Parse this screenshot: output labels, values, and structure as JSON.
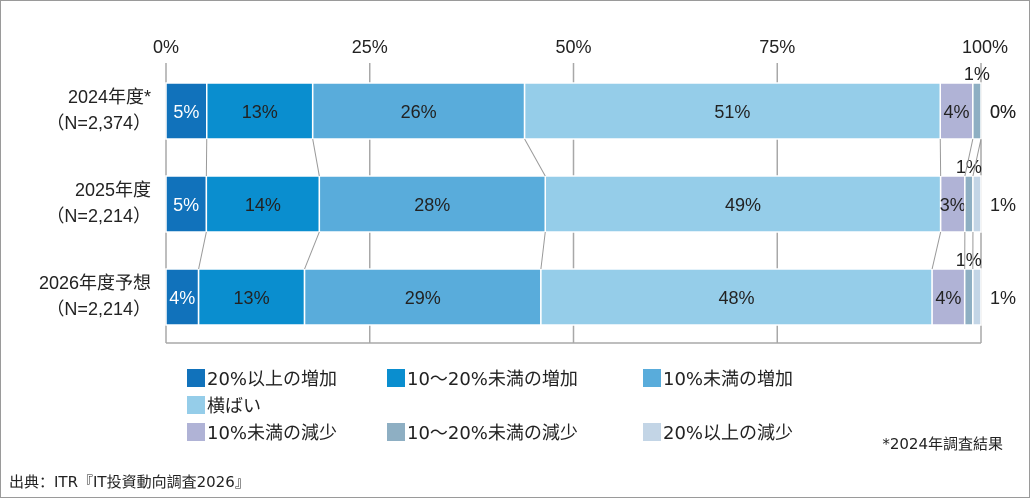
{
  "chart_data": {
    "type": "bar",
    "orientation": "horizontal",
    "stacked": true,
    "categories": [
      "2024年度*\n（N=2,374）",
      "2025年度\n（N=2,214）",
      "2026年度予想\n（N=2,214）"
    ],
    "category_lines": [
      [
        "2024年度*",
        "（N=2,374）"
      ],
      [
        "2025年度",
        "（N=2,214）"
      ],
      [
        "2026年度予想",
        "（N=2,214）"
      ]
    ],
    "xlim": [
      0,
      100
    ],
    "x_ticks": [
      "0%",
      "25%",
      "50%",
      "75%",
      "100%"
    ],
    "grid": true,
    "legend_position": "bottom",
    "series": [
      {
        "name": "20%以上の増加",
        "color": "#1172bb",
        "values": [
          5,
          5,
          4
        ]
      },
      {
        "name": "10～20%未満の増加",
        "color": "#0a8ecf",
        "values": [
          13,
          14,
          13
        ]
      },
      {
        "name": "10%未満の増加",
        "color": "#59acdb",
        "values": [
          26,
          28,
          29
        ]
      },
      {
        "name": "横ばい",
        "color": "#95cde9",
        "values": [
          51,
          49,
          48
        ]
      },
      {
        "name": "10%未満の減少",
        "color": "#b0b3d6",
        "values": [
          4,
          3,
          4
        ]
      },
      {
        "name": "10～20%未満の減少",
        "color": "#8eafc3",
        "values": [
          1,
          1,
          1
        ]
      },
      {
        "name": "20%以上の減少",
        "color": "#c3d5e6",
        "values": [
          0,
          1,
          1
        ]
      }
    ]
  },
  "footnote": "*2024年調査結果",
  "source": "出典：ITR『IT投資動向調査2026』"
}
